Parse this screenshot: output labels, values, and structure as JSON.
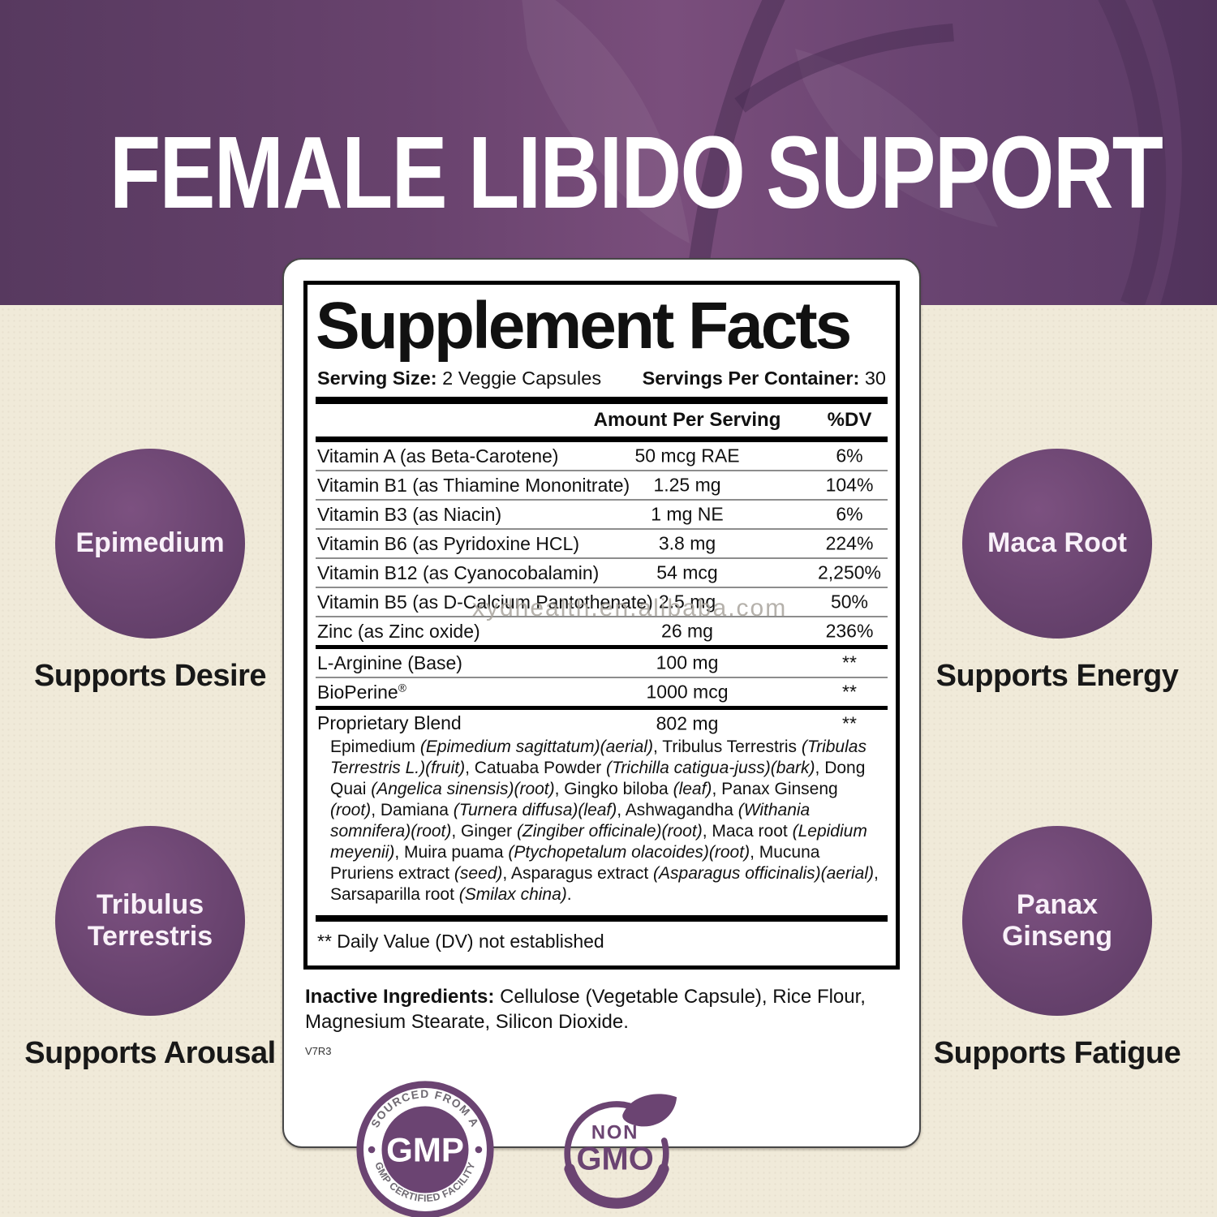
{
  "header": {
    "title": "FEMALE LIBIDO SUPPORT"
  },
  "panel": {
    "title": "Supplement Facts",
    "serving_size_label": "Serving Size:",
    "serving_size_value": "2 Veggie Capsules",
    "servings_label": "Servings Per Container:",
    "servings_value": "30",
    "col_amount": "Amount Per Serving",
    "col_dv": "%DV",
    "rows": [
      {
        "name": "Vitamin A (as Beta-Carotene)",
        "amount": "50 mcg RAE",
        "dv": "6%"
      },
      {
        "name": "Vitamin B1 (as Thiamine Mononitrate)",
        "amount": "1.25 mg",
        "dv": "104%"
      },
      {
        "name": "Vitamin B3 (as Niacin)",
        "amount": "1 mg NE",
        "dv": "6%"
      },
      {
        "name": "Vitamin B6 (as Pyridoxine HCL)",
        "amount": "3.8 mg",
        "dv": "224%"
      },
      {
        "name": "Vitamin B12 (as Cyanocobalamin)",
        "amount": "54 mcg",
        "dv": "2,250%"
      },
      {
        "name": "Vitamin B5 (as D-Calcium Pantothenate)",
        "amount": "2.5 mg",
        "dv": "50%"
      },
      {
        "name": "Zinc (as Zinc oxide)",
        "amount": "26 mg",
        "dv": "236%"
      }
    ],
    "rows2": [
      {
        "name": "L-Arginine (Base)",
        "amount": "100 mg",
        "dv": "**"
      },
      {
        "name": "BioPerine",
        "mark": "®",
        "amount": "1000 mcg",
        "dv": "**"
      }
    ],
    "blend": {
      "name": "Proprietary Blend",
      "amount": "802 mg",
      "dv": "**",
      "description": "Epimedium (Epimedium sagittatum)(aerial), Tribulus Terrestris (Tribulas Terrestris L.)(fruit), Catuaba Powder (Trichilla catigua-juss)(bark), Dong Quai (Angelica sinensis)(root), Gingko biloba (leaf), Panax Ginseng (root), Damiana (Turnera diffusa)(leaf), Ashwagandha (Withania somnifera)(root), Ginger (Zingiber officinale)(root), Maca root (Lepidium meyenii), Muira puama (Ptychopetalum olacoides)(root), Mucuna Pruriens extract (seed), Asparagus extract (Asparagus officinalis)(aerial), Sarsaparilla root (Smilax china)."
    },
    "footnote": "** Daily Value (DV) not established",
    "inactive_label": "Inactive Ingredients:",
    "inactive_value": "Cellulose (Vegetable Capsule), Rice Flour, Magnesium Stearate, Silicon Dioxide.",
    "version": "V7R3"
  },
  "watermark": "xydhealth.en.alibaba.com",
  "features": [
    {
      "circle": "Epimedium",
      "caption": "Supports Desire",
      "position": "left-top"
    },
    {
      "circle": "Maca Root",
      "caption": "Supports Energy",
      "position": "right-top"
    },
    {
      "circle": "Tribulus Terrestris",
      "caption": "Supports Arousal",
      "position": "left-bottom"
    },
    {
      "circle": "Panax Ginseng",
      "caption": "Supports Fatigue",
      "position": "right-bottom"
    }
  ],
  "badges": {
    "gmp": {
      "top_text": "SOURCED FROM A",
      "center_text": "GMP",
      "bottom_text": "GMP CERTIFIED FACILITY"
    },
    "non_gmo": {
      "line1": "NON",
      "line2": "GMO"
    }
  },
  "colors": {
    "brand_purple": "#6b4472",
    "header_purple": "#5e3d68",
    "circle_purple": "#6a4470",
    "cream_background": "#f0ead9",
    "text": "#111111",
    "watermark_gray": "#a9a49d"
  }
}
